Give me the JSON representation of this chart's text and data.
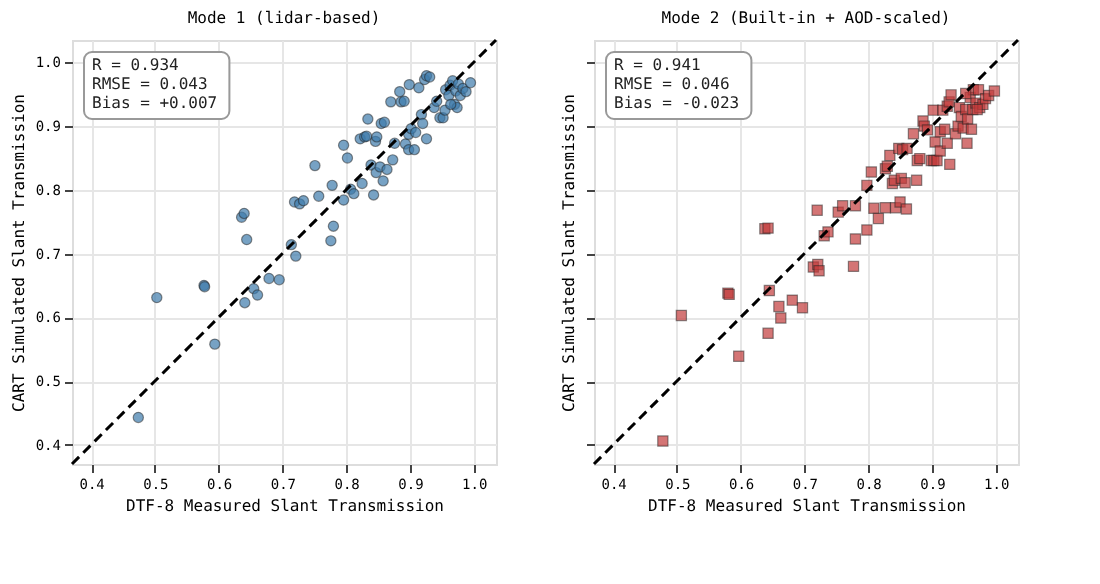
{
  "chart_data": [
    {
      "type": "scatter",
      "title": "Mode 1 (lidar-based)",
      "xlabel": "DTF-8 Measured Slant Transmission",
      "ylabel": "CART Simulated Slant Transmission",
      "xlim": [
        0.37,
        1.035
      ],
      "ylim": [
        0.37,
        1.035
      ],
      "xticks": [
        0.4,
        0.5,
        0.6,
        0.7,
        0.8,
        0.9,
        {
          "value": 1,
          "label": "1.0"
        }
      ],
      "yticks": [
        0.4,
        0.5,
        0.6,
        0.7,
        0.8,
        0.9,
        {
          "value": 1,
          "label": "1.0"
        }
      ],
      "grid": true,
      "marker": "circle",
      "annotations": [
        "R = 0.934\nRMSE = 0.043\nBias = +0.007"
      ],
      "series": [
        {
          "type": "scatter",
          "color": "#3d7bab",
          "x": [
            0.474,
            0.503,
            0.577,
            0.578,
            0.594,
            0.636,
            0.64,
            0.644,
            0.641,
            0.655,
            0.661,
            0.679,
            0.695,
            0.714,
            0.719,
            0.721,
            0.727,
            0.733,
            0.751,
            0.757,
            0.778,
            0.78,
            0.776,
            0.796,
            0.796,
            0.802,
            0.807,
            0.812,
            0.825,
            0.822,
            0.829,
            0.834,
            0.832,
            0.839,
            0.843,
            0.846,
            0.848,
            0.847,
            0.853,
            0.855,
            0.86,
            0.858,
            0.864,
            0.873,
            0.87,
            0.876,
            0.884,
            0.886,
            0.891,
            0.893,
            0.898,
            0.898,
            0.899,
            0.902,
            0.907,
            0.909,
            0.914,
            0.918,
            0.92,
            0.923,
            0.926,
            0.926,
            0.931,
            0.938,
            0.942,
            0.947,
            0.952,
            0.955,
            0.956,
            0.961,
            0.963,
            0.967,
            0.97,
            0.972,
            0.976,
            0.979,
            0.983,
            0.988,
            0.995,
            0.974,
            0.964
          ],
          "values": [
            0.443,
            0.631,
            0.65,
            0.648,
            0.558,
            0.757,
            0.763,
            0.722,
            0.623,
            0.645,
            0.635,
            0.661,
            0.659,
            0.714,
            0.781,
            0.696,
            0.778,
            0.783,
            0.838,
            0.79,
            0.807,
            0.743,
            0.72,
            0.784,
            0.87,
            0.85,
            0.801,
            0.794,
            0.81,
            0.88,
            0.883,
            0.911,
            0.884,
            0.839,
            0.792,
            0.876,
            0.883,
            0.827,
            0.836,
            0.904,
            0.906,
            0.814,
            0.832,
            0.847,
            0.938,
            0.873,
            0.954,
            0.938,
            0.939,
            0.872,
            0.887,
            0.863,
            0.965,
            0.896,
            0.863,
            0.89,
            0.96,
            0.918,
            0.904,
            0.973,
            0.88,
            0.979,
            0.977,
            0.929,
            0.939,
            0.913,
            0.913,
            0.925,
            0.957,
            0.948,
            0.964,
            0.971,
            0.934,
            0.955,
            0.966,
            0.948,
            0.959,
            0.954,
            0.968,
            0.929,
            0.934
          ]
        },
        {
          "type": "line",
          "color": "#000000",
          "line_style": "dashed",
          "marker": "none",
          "x": [
            0.37,
            1.035
          ],
          "values": [
            0.37,
            1.035
          ]
        }
      ]
    },
    {
      "type": "scatter",
      "title": "Mode 2 (Built-in + AOD-scaled)",
      "xlabel": "DTF-8 Measured Slant Transmission",
      "ylabel": "CART Simulated Slant Transmission",
      "xlim": [
        0.37,
        1.035
      ],
      "ylim": [
        0.37,
        1.035
      ],
      "xticks": [
        0.4,
        0.5,
        0.6,
        0.7,
        0.8,
        0.9,
        {
          "value": 1,
          "label": "1.0"
        }
      ],
      "yticks": [
        0.4,
        0.5,
        0.6,
        0.7,
        0.8,
        0.9,
        1.0
      ],
      "grid": true,
      "marker": "square",
      "tick_labels": "x",
      "annotations": [
        "R = 0.941\nRMSE = 0.046\nBias = -0.023"
      ],
      "series": [
        {
          "type": "scatter",
          "color": "#c23b3b",
          "x": [
            0.478,
            0.507,
            0.58,
            0.582,
            0.597,
            0.638,
            0.643,
            0.643,
            0.645,
            0.66,
            0.663,
            0.681,
            0.697,
            0.714,
            0.72,
            0.721,
            0.723,
            0.731,
            0.737,
            0.753,
            0.76,
            0.777,
            0.78,
            0.78,
            0.798,
            0.798,
            0.805,
            0.809,
            0.816,
            0.827,
            0.83,
            0.827,
            0.834,
            0.838,
            0.841,
            0.843,
            0.848,
            0.85,
            0.852,
            0.854,
            0.858,
            0.861,
            0.86,
            0.871,
            0.876,
            0.877,
            0.881,
            0.886,
            0.888,
            0.893,
            0.899,
            0.903,
            0.902,
            0.905,
            0.908,
            0.913,
            0.913,
            0.917,
            0.92,
            0.924,
            0.924,
            0.928,
            0.927,
            0.93,
            0.937,
            0.941,
            0.943,
            0.946,
            0.949,
            0.953,
            0.955,
            0.956,
            0.96,
            0.962,
            0.964,
            0.965,
            0.969,
            0.973,
            0.975,
            0.98,
            0.984,
            0.989,
            0.998,
            0.953,
            0.971
          ],
          "values": [
            0.406,
            0.603,
            0.638,
            0.636,
            0.539,
            0.739,
            0.74,
            0.575,
            0.642,
            0.617,
            0.599,
            0.627,
            0.615,
            0.679,
            0.768,
            0.683,
            0.673,
            0.728,
            0.734,
            0.765,
            0.775,
            0.68,
            0.723,
            0.775,
            0.737,
            0.807,
            0.828,
            0.771,
            0.755,
            0.833,
            0.837,
            0.772,
            0.854,
            0.81,
            0.815,
            0.772,
            0.865,
            0.781,
            0.818,
            0.863,
            0.811,
            0.865,
            0.77,
            0.888,
            0.815,
            0.846,
            0.849,
            0.908,
            0.9,
            0.894,
            0.846,
            0.846,
            0.925,
            0.875,
            0.846,
            0.861,
            0.891,
            0.925,
            0.895,
            0.931,
            0.873,
            0.84,
            0.938,
            0.949,
            0.888,
            0.9,
            0.929,
            0.915,
            0.897,
            0.926,
            0.873,
            0.911,
            0.945,
            0.895,
            0.926,
            0.957,
            0.936,
            0.957,
            0.929,
            0.934,
            0.943,
            0.948,
            0.955,
            0.951,
            0.926
          ]
        },
        {
          "type": "line",
          "color": "#000000",
          "line_style": "dashed",
          "marker": "none",
          "x": [
            0.37,
            1.035
          ],
          "values": [
            0.37,
            1.035
          ]
        }
      ]
    }
  ]
}
